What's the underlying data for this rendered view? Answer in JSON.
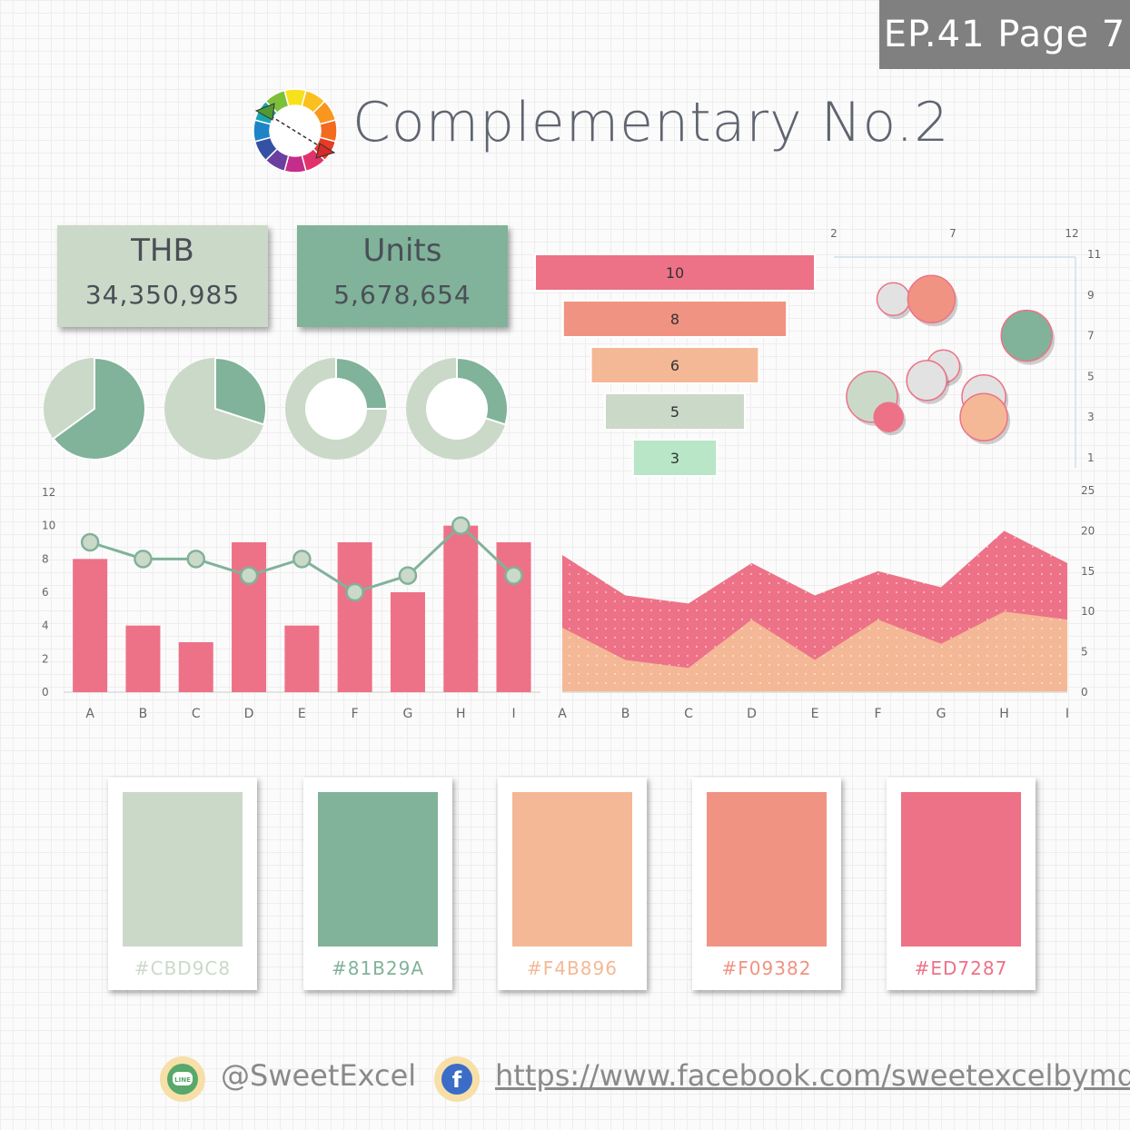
{
  "badge": {
    "text": "EP.41 Page 7"
  },
  "title": {
    "text": "Complementary No.2",
    "icon": "color-wheel-icon"
  },
  "kpis": [
    {
      "label": "THB",
      "value": "34,350,985",
      "color": "#CBD9C8"
    },
    {
      "label": "Units",
      "value": "5,678,654",
      "color": "#81B29A"
    }
  ],
  "pies": [
    {
      "type": "pie",
      "value": 0.65,
      "color": "#81B29A",
      "rest": "#CBD9C8"
    },
    {
      "type": "pie",
      "value": 0.3,
      "color": "#81B29A",
      "rest": "#CBD9C8"
    },
    {
      "type": "donut",
      "value": 0.25,
      "color": "#81B29A",
      "rest": "#CBD9C8"
    },
    {
      "type": "donut",
      "value": 0.3,
      "color": "#81B29A",
      "rest": "#CBD9C8"
    }
  ],
  "chart_data": [
    {
      "type": "bar",
      "name": "funnel",
      "values": [
        10,
        8,
        6,
        5,
        3
      ],
      "labels": [
        "10",
        "8",
        "6",
        "5",
        "3"
      ],
      "colors": [
        "#ED7287",
        "#F09382",
        "#F4B896",
        "#CBD9C8",
        "#B8E6C6"
      ]
    },
    {
      "type": "scatter",
      "name": "bubble",
      "x_ticks": [
        "2",
        "7",
        "12"
      ],
      "y_ticks": [
        "11",
        "9",
        "7",
        "5",
        "3",
        "1"
      ],
      "xlim": [
        2,
        12
      ],
      "ylim": [
        1,
        11
      ],
      "points": [
        {
          "x": 4.5,
          "y": 8.8,
          "r": 18,
          "color": "#e2e2e2"
        },
        {
          "x": 6.1,
          "y": 8.8,
          "r": 26,
          "color": "#F09382"
        },
        {
          "x": 10.1,
          "y": 7.0,
          "r": 28,
          "color": "#81B29A"
        },
        {
          "x": 6.6,
          "y": 5.5,
          "r": 18,
          "color": "#e2e2e2"
        },
        {
          "x": 5.9,
          "y": 4.8,
          "r": 22,
          "color": "#e2e2e2"
        },
        {
          "x": 8.3,
          "y": 4.0,
          "r": 24,
          "color": "#e2e2e2"
        },
        {
          "x": 3.6,
          "y": 4.0,
          "r": 28,
          "color": "#CBD9C8"
        },
        {
          "x": 8.3,
          "y": 3.0,
          "r": 26,
          "color": "#F4B896"
        },
        {
          "x": 4.3,
          "y": 3.0,
          "r": 16,
          "color": "#ED7287"
        }
      ]
    },
    {
      "type": "bar",
      "name": "combo",
      "categories": [
        "A",
        "B",
        "C",
        "D",
        "E",
        "F",
        "G",
        "H",
        "I"
      ],
      "y_ticks": [
        "12",
        "10",
        "8",
        "6",
        "4",
        "2",
        "0"
      ],
      "ylim": [
        0,
        12
      ],
      "bars": [
        8,
        4,
        3,
        9,
        4,
        9,
        6,
        10,
        9
      ],
      "line": [
        9,
        8,
        8,
        7,
        8,
        6,
        7,
        10,
        7
      ],
      "bar_color": "#ED7287",
      "line_color": "#81B29A",
      "marker_color": "#CBD9C8"
    },
    {
      "type": "area",
      "name": "area",
      "categories": [
        "A",
        "B",
        "C",
        "D",
        "E",
        "F",
        "G",
        "H",
        "I"
      ],
      "y_ticks": [
        "25",
        "20",
        "15",
        "10",
        "5",
        "0"
      ],
      "ylim": [
        0,
        25
      ],
      "series": [
        {
          "values": [
            17,
            12,
            11,
            16,
            12,
            15,
            13,
            20,
            16
          ],
          "color": "#ED7287"
        },
        {
          "values": [
            8,
            4,
            3,
            9,
            4,
            9,
            6,
            10,
            9
          ],
          "color": "#F4B896"
        }
      ]
    }
  ],
  "swatches": [
    {
      "hex": "#CBD9C8",
      "color": "#CBD9C8"
    },
    {
      "hex": "#81B29A",
      "color": "#81B29A"
    },
    {
      "hex": "#F4B896",
      "color": "#F4B896"
    },
    {
      "hex": "#F09382",
      "color": "#F09382"
    },
    {
      "hex": "#ED7287",
      "color": "#ED7287"
    }
  ],
  "footer": {
    "line_handle": "@SweetExcel",
    "line_icon": "line-app-icon",
    "facebook_url": "https://www.facebook.com/sweetexcelbymd/",
    "facebook_icon": "facebook-icon"
  }
}
